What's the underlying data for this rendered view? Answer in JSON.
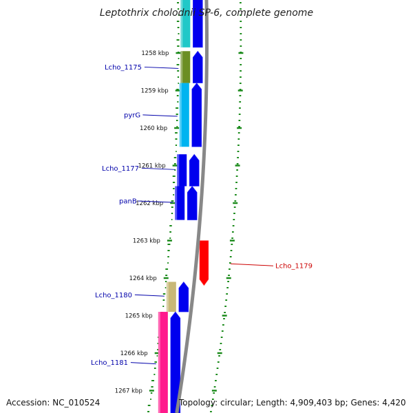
{
  "title": "Leptothrix cholodnii SP-6, complete genome",
  "footer": {
    "accession": "Accession: NC_010524",
    "topology": "Topology: circular; Length: 4,909,403 bp; Genes: 4,420"
  },
  "colors": {
    "backbone": "#888888",
    "gc_track": "#1a8a1a",
    "forward_cds": "#0000ee",
    "reverse_cds": "#ff0000",
    "reverse_label": "#cc0000",
    "label_default": "#0000aa"
  },
  "scale": {
    "unit": "kbp",
    "ticks": [
      1258,
      1259,
      1260,
      1261,
      1262,
      1263,
      1264,
      1265,
      1266,
      1267
    ],
    "tick_labels": [
      "1258 kbp",
      "1259 kbp",
      "1260 kbp",
      "1261 kbp",
      "1262 kbp",
      "1263 kbp",
      "1264 kbp",
      "1265 kbp",
      "1266 kbp",
      "1267 kbp"
    ]
  },
  "features": [
    {
      "id": "f0",
      "strand": "+",
      "start_kbp": 1256.4,
      "end_kbp": 1257.85,
      "cog_color": "#20c8c8",
      "label": ""
    },
    {
      "id": "f1",
      "strand": "+",
      "start_kbp": 1257.95,
      "end_kbp": 1258.8,
      "cog_color": "#6b8e23",
      "label": "Lcho_1175"
    },
    {
      "id": "f2",
      "strand": "+",
      "start_kbp": 1258.8,
      "end_kbp": 1260.5,
      "cog_color": "#00b4f0",
      "label": "pyrG"
    },
    {
      "id": "f3",
      "strand": "+",
      "start_kbp": 1260.7,
      "end_kbp": 1261.55,
      "cog_color": "",
      "label": "Lcho_1177"
    },
    {
      "id": "f4",
      "strand": "+",
      "start_kbp": 1261.55,
      "end_kbp": 1262.45,
      "cog_color": "",
      "label": "panB"
    },
    {
      "id": "f5",
      "strand": "-",
      "start_kbp": 1263.0,
      "end_kbp": 1264.2,
      "cog_color": "",
      "label": "Lcho_1179"
    },
    {
      "id": "f6",
      "strand": "+",
      "start_kbp": 1264.1,
      "end_kbp": 1264.9,
      "cog_color": "#c8b878",
      "label": "Lcho_1180"
    },
    {
      "id": "f7",
      "strand": "+",
      "start_kbp": 1264.9,
      "end_kbp": 1267.6,
      "cog_color": "#ff1a8c",
      "label": "Lcho_1181"
    }
  ]
}
